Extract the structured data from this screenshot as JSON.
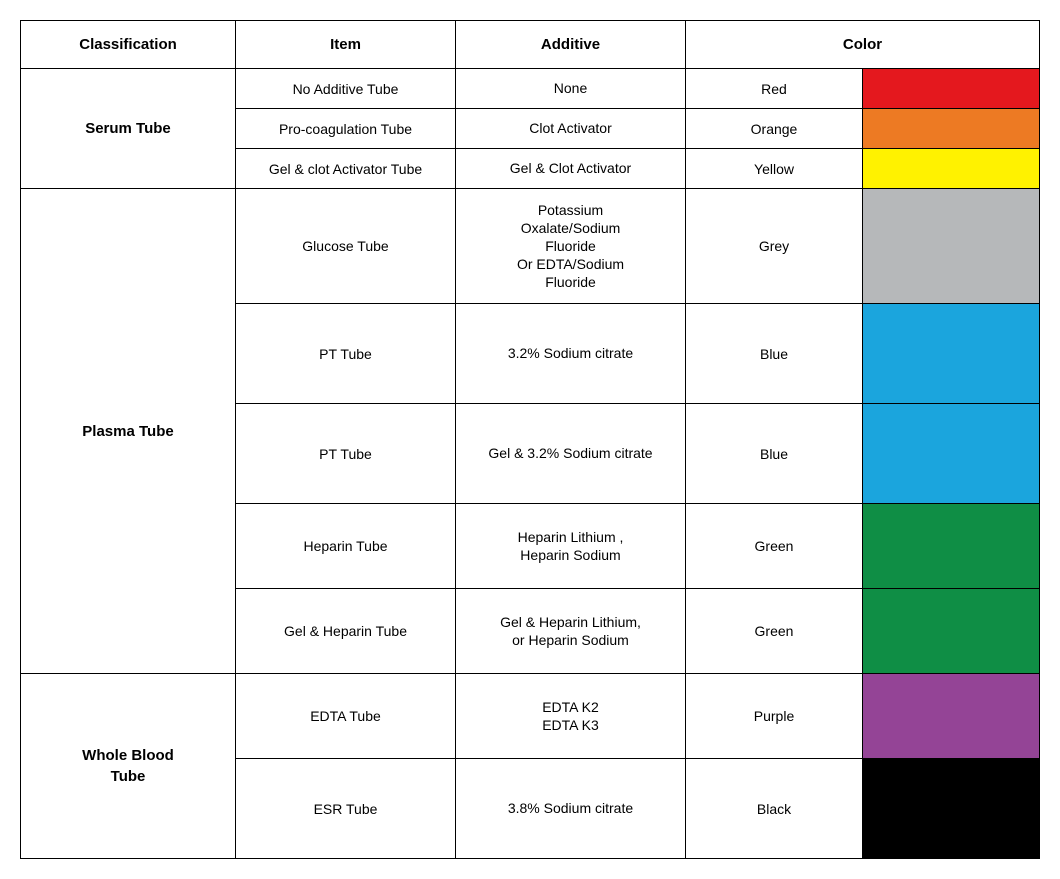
{
  "table": {
    "type": "table",
    "headers": {
      "classification": "Classification",
      "item": "Item",
      "additive": "Additive",
      "color": "Color"
    },
    "groups": [
      {
        "classification": "Serum Tube",
        "rows": [
          {
            "item": "No Additive Tube",
            "additive": "None",
            "color_name": "Red",
            "color_hex": "#e4181e",
            "row_class": "row-small"
          },
          {
            "item": "Pro-coagulation Tube",
            "additive": "Clot  Activator",
            "color_name": "Orange",
            "color_hex": "#ed7a23",
            "row_class": "row-small"
          },
          {
            "item": "Gel & clot Activator Tube",
            "additive": "Gel & Clot  Activator",
            "color_name": "Yellow",
            "color_hex": "#fff200",
            "row_class": "row-small"
          }
        ]
      },
      {
        "classification": "Plasma Tube",
        "rows": [
          {
            "item": "Glucose Tube",
            "additive": "Potassium\nOxalate/Sodium\nFluoride\nOr EDTA/Sodium\nFluoride",
            "color_name": "Grey",
            "color_hex": "#b6b8ba",
            "row_class": "row-glucose"
          },
          {
            "item": "PT Tube",
            "additive": "3.2% Sodium citrate",
            "color_name": "Blue",
            "color_hex": "#1ba5dd",
            "row_class": "row-medium"
          },
          {
            "item": "PT Tube",
            "additive": "Gel & 3.2% Sodium citrate",
            "color_name": "Blue",
            "color_hex": "#1ba5dd",
            "row_class": "row-medium"
          },
          {
            "item": "Heparin  Tube",
            "additive": "Heparin Lithium ,\nHeparin Sodium",
            "color_name": "Green",
            "color_hex": "#0f8e45",
            "row_class": "row-heparin"
          },
          {
            "item": "Gel & Heparin  Tube",
            "additive": "Gel &  Heparin Lithium,\nor Heparin Sodium",
            "color_name": "Green",
            "color_hex": "#0f8e45",
            "row_class": "row-heparin"
          }
        ]
      },
      {
        "classification": "Whole Blood\nTube",
        "rows": [
          {
            "item": "EDTA Tube",
            "additive": "EDTA  K2\nEDTA  K3",
            "color_name": "Purple",
            "color_hex": "#944496",
            "row_class": "row-heparin"
          },
          {
            "item": "ESR Tube",
            "additive": "3.8% Sodium citrate",
            "color_name": "Black",
            "color_hex": "#000000",
            "row_class": "row-medium"
          }
        ]
      }
    ],
    "styling": {
      "border_color": "#000000",
      "background_color": "#ffffff",
      "header_font_size": 15,
      "body_font_size": 14,
      "header_font_weight": "bold",
      "column_widths": {
        "classification": 215,
        "item": 220,
        "additive": 230,
        "color_name": 155,
        "color_swatch": 155
      }
    }
  }
}
